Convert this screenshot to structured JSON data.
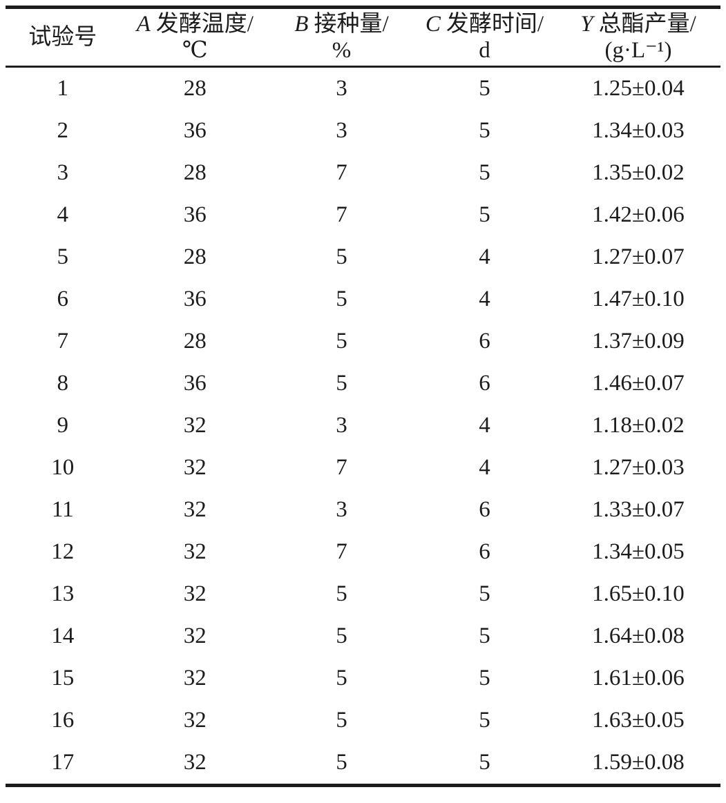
{
  "colors": {
    "background": "#ffffff",
    "text": "#1c1c1c",
    "rule": "#1c1c1c"
  },
  "table": {
    "columns": [
      {
        "id": "run",
        "var": "",
        "label": "试验号",
        "unit": ""
      },
      {
        "id": "temperature",
        "var": "A",
        "label": "发酵温度/",
        "unit": "℃"
      },
      {
        "id": "inoculum",
        "var": "B",
        "label": "接种量/",
        "unit": "%"
      },
      {
        "id": "time",
        "var": "C",
        "label": "发酵时间/",
        "unit": "d"
      },
      {
        "id": "ester-yield",
        "var": "Y",
        "label": "总酯产量/",
        "unit": "(g·L⁻¹)"
      }
    ],
    "rows": [
      [
        "1",
        "28",
        "3",
        "5",
        "1.25±0.04"
      ],
      [
        "2",
        "36",
        "3",
        "5",
        "1.34±0.03"
      ],
      [
        "3",
        "28",
        "7",
        "5",
        "1.35±0.02"
      ],
      [
        "4",
        "36",
        "7",
        "5",
        "1.42±0.06"
      ],
      [
        "5",
        "28",
        "5",
        "4",
        "1.27±0.07"
      ],
      [
        "6",
        "36",
        "5",
        "4",
        "1.47±0.10"
      ],
      [
        "7",
        "28",
        "5",
        "6",
        "1.37±0.09"
      ],
      [
        "8",
        "36",
        "5",
        "6",
        "1.46±0.07"
      ],
      [
        "9",
        "32",
        "3",
        "4",
        "1.18±0.02"
      ],
      [
        "10",
        "32",
        "7",
        "4",
        "1.27±0.03"
      ],
      [
        "11",
        "32",
        "3",
        "6",
        "1.33±0.07"
      ],
      [
        "12",
        "32",
        "7",
        "6",
        "1.34±0.05"
      ],
      [
        "13",
        "32",
        "5",
        "5",
        "1.65±0.10"
      ],
      [
        "14",
        "32",
        "5",
        "5",
        "1.64±0.08"
      ],
      [
        "15",
        "32",
        "5",
        "5",
        "1.61±0.06"
      ],
      [
        "16",
        "32",
        "5",
        "5",
        "1.63±0.05"
      ],
      [
        "17",
        "32",
        "5",
        "5",
        "1.59±0.08"
      ]
    ]
  }
}
